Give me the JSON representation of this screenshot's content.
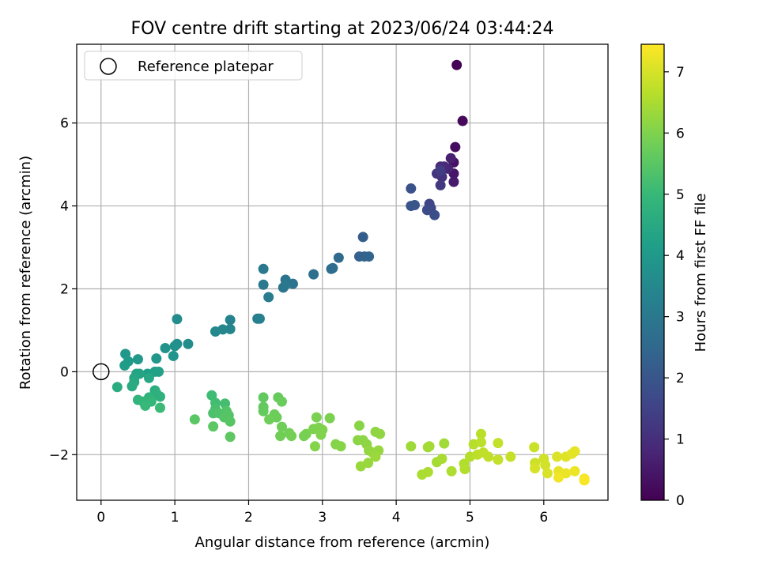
{
  "chart_data": {
    "type": "scatter",
    "title": "FOV centre drift starting at 2023/06/24 03:44:24",
    "xlabel": "Angular distance from reference (arcmin)",
    "ylabel": "Rotation from reference (arcmin)",
    "xlim": [
      -0.33,
      6.87
    ],
    "ylim": [
      -3.1,
      7.9
    ],
    "xticks": [
      0,
      1,
      2,
      3,
      4,
      5,
      6
    ],
    "yticks": [
      -2,
      0,
      2,
      4,
      6
    ],
    "grid": true,
    "legend": {
      "placement": "top-left",
      "entries": [
        {
          "label": "Reference platepar",
          "marker": "open-circle"
        }
      ]
    },
    "reference_point": {
      "x": 0,
      "y": 0
    },
    "colorbar": {
      "label": "Hours from first FF file",
      "range": [
        0,
        7.45
      ],
      "ticks": [
        0,
        1,
        2,
        3,
        4,
        5,
        6,
        7
      ],
      "colormap": "viridis",
      "stops": [
        "#440154",
        "#482878",
        "#3e4989",
        "#31688e",
        "#26828e",
        "#1f9e89",
        "#35b779",
        "#6ece58",
        "#b5de2b",
        "#fde725"
      ]
    },
    "points": [
      {
        "x": 4.82,
        "y": 7.4,
        "h": 0.05
      },
      {
        "x": 4.9,
        "y": 6.05,
        "h": 0.15
      },
      {
        "x": 4.8,
        "y": 5.42,
        "h": 0.25
      },
      {
        "x": 4.78,
        "y": 5.05,
        "h": 0.35
      },
      {
        "x": 4.78,
        "y": 4.78,
        "h": 0.45
      },
      {
        "x": 4.78,
        "y": 4.58,
        "h": 0.55
      },
      {
        "x": 4.74,
        "y": 5.15,
        "h": 0.65
      },
      {
        "x": 4.7,
        "y": 4.9,
        "h": 0.75
      },
      {
        "x": 4.65,
        "y": 4.95,
        "h": 0.85
      },
      {
        "x": 4.6,
        "y": 4.95,
        "h": 0.95
      },
      {
        "x": 4.62,
        "y": 4.7,
        "h": 1.05
      },
      {
        "x": 4.55,
        "y": 4.78,
        "h": 1.15
      },
      {
        "x": 4.6,
        "y": 4.5,
        "h": 1.25
      },
      {
        "x": 4.6,
        "y": 4.85,
        "h": 1.35
      },
      {
        "x": 4.45,
        "y": 4.05,
        "h": 1.5
      },
      {
        "x": 4.47,
        "y": 3.95,
        "h": 1.6
      },
      {
        "x": 4.42,
        "y": 3.9,
        "h": 1.7
      },
      {
        "x": 4.52,
        "y": 3.78,
        "h": 1.8
      },
      {
        "x": 4.2,
        "y": 4.42,
        "h": 1.9
      },
      {
        "x": 4.2,
        "y": 4.0,
        "h": 1.95
      },
      {
        "x": 4.25,
        "y": 4.02,
        "h": 2.0
      },
      {
        "x": 3.55,
        "y": 3.25,
        "h": 2.2
      },
      {
        "x": 3.5,
        "y": 2.78,
        "h": 2.3
      },
      {
        "x": 3.57,
        "y": 2.78,
        "h": 2.35
      },
      {
        "x": 3.63,
        "y": 2.78,
        "h": 2.4
      },
      {
        "x": 3.22,
        "y": 2.75,
        "h": 2.55
      },
      {
        "x": 3.12,
        "y": 2.48,
        "h": 2.6
      },
      {
        "x": 3.14,
        "y": 2.5,
        "h": 2.65
      },
      {
        "x": 2.88,
        "y": 2.35,
        "h": 2.7
      },
      {
        "x": 2.6,
        "y": 2.12,
        "h": 2.8
      },
      {
        "x": 2.5,
        "y": 2.22,
        "h": 2.85
      },
      {
        "x": 2.47,
        "y": 2.03,
        "h": 2.9
      },
      {
        "x": 2.5,
        "y": 2.1,
        "h": 2.95
      },
      {
        "x": 2.2,
        "y": 2.48,
        "h": 3.0
      },
      {
        "x": 2.2,
        "y": 2.1,
        "h": 3.05
      },
      {
        "x": 2.27,
        "y": 1.8,
        "h": 3.1
      },
      {
        "x": 2.12,
        "y": 1.28,
        "h": 3.2
      },
      {
        "x": 2.15,
        "y": 1.28,
        "h": 3.25
      },
      {
        "x": 1.75,
        "y": 1.25,
        "h": 3.35
      },
      {
        "x": 1.75,
        "y": 1.03,
        "h": 3.4
      },
      {
        "x": 1.65,
        "y": 1.02,
        "h": 3.45
      },
      {
        "x": 1.55,
        "y": 0.97,
        "h": 3.5
      },
      {
        "x": 1.03,
        "y": 1.27,
        "h": 3.6
      },
      {
        "x": 1.18,
        "y": 0.67,
        "h": 3.65
      },
      {
        "x": 1.03,
        "y": 0.67,
        "h": 3.7
      },
      {
        "x": 1.0,
        "y": 0.62,
        "h": 3.75
      },
      {
        "x": 0.87,
        "y": 0.57,
        "h": 3.8
      },
      {
        "x": 0.98,
        "y": 0.38,
        "h": 3.85
      },
      {
        "x": 0.75,
        "y": 0.32,
        "h": 3.9
      },
      {
        "x": 0.33,
        "y": 0.43,
        "h": 3.95
      },
      {
        "x": 0.5,
        "y": 0.3,
        "h": 4.0
      },
      {
        "x": 0.37,
        "y": 0.25,
        "h": 4.05
      },
      {
        "x": 0.32,
        "y": 0.15,
        "h": 4.1
      },
      {
        "x": 0.63,
        "y": -0.05,
        "h": 4.15
      },
      {
        "x": 0.73,
        "y": 0.0,
        "h": 4.2
      },
      {
        "x": 0.78,
        "y": 0.0,
        "h": 4.25
      },
      {
        "x": 0.48,
        "y": -0.05,
        "h": 4.3
      },
      {
        "x": 0.52,
        "y": -0.05,
        "h": 4.35
      },
      {
        "x": 0.45,
        "y": -0.15,
        "h": 4.4
      },
      {
        "x": 0.65,
        "y": -0.15,
        "h": 4.45
      },
      {
        "x": 0.45,
        "y": -0.25,
        "h": 4.5
      },
      {
        "x": 0.42,
        "y": -0.35,
        "h": 4.55
      },
      {
        "x": 0.22,
        "y": -0.37,
        "h": 4.6
      },
      {
        "x": 0.73,
        "y": -0.45,
        "h": 4.65
      },
      {
        "x": 0.75,
        "y": -0.52,
        "h": 4.7
      },
      {
        "x": 0.8,
        "y": -0.6,
        "h": 4.75
      },
      {
        "x": 0.65,
        "y": -0.62,
        "h": 4.8
      },
      {
        "x": 0.5,
        "y": -0.68,
        "h": 4.85
      },
      {
        "x": 0.57,
        "y": -0.72,
        "h": 4.9
      },
      {
        "x": 0.68,
        "y": -0.72,
        "h": 4.95
      },
      {
        "x": 0.6,
        "y": -0.82,
        "h": 5.0
      },
      {
        "x": 0.8,
        "y": -0.87,
        "h": 5.05
      },
      {
        "x": 1.5,
        "y": -0.57,
        "h": 5.1
      },
      {
        "x": 1.55,
        "y": -0.75,
        "h": 5.15
      },
      {
        "x": 1.68,
        "y": -0.77,
        "h": 5.2
      },
      {
        "x": 1.55,
        "y": -0.9,
        "h": 5.25
      },
      {
        "x": 1.52,
        "y": -1.0,
        "h": 5.3
      },
      {
        "x": 1.6,
        "y": -1.0,
        "h": 5.35
      },
      {
        "x": 1.7,
        "y": -0.95,
        "h": 5.4
      },
      {
        "x": 1.73,
        "y": -1.05,
        "h": 5.42
      },
      {
        "x": 1.67,
        "y": -1.1,
        "h": 5.45
      },
      {
        "x": 1.75,
        "y": -1.2,
        "h": 5.48
      },
      {
        "x": 1.27,
        "y": -1.15,
        "h": 5.5
      },
      {
        "x": 1.52,
        "y": -1.32,
        "h": 5.53
      },
      {
        "x": 1.75,
        "y": -1.57,
        "h": 5.56
      },
      {
        "x": 2.2,
        "y": -0.62,
        "h": 5.6
      },
      {
        "x": 2.2,
        "y": -0.85,
        "h": 5.63
      },
      {
        "x": 2.2,
        "y": -0.95,
        "h": 5.66
      },
      {
        "x": 2.4,
        "y": -0.62,
        "h": 5.7
      },
      {
        "x": 2.45,
        "y": -0.72,
        "h": 5.72
      },
      {
        "x": 2.35,
        "y": -1.03,
        "h": 5.74
      },
      {
        "x": 2.38,
        "y": -1.1,
        "h": 5.76
      },
      {
        "x": 2.28,
        "y": -1.15,
        "h": 5.78
      },
      {
        "x": 2.45,
        "y": -1.33,
        "h": 5.8
      },
      {
        "x": 2.43,
        "y": -1.55,
        "h": 5.82
      },
      {
        "x": 2.55,
        "y": -1.48,
        "h": 5.84
      },
      {
        "x": 2.58,
        "y": -1.55,
        "h": 5.86
      },
      {
        "x": 2.75,
        "y": -1.55,
        "h": 5.88
      },
      {
        "x": 2.78,
        "y": -1.5,
        "h": 5.9
      },
      {
        "x": 2.92,
        "y": -1.1,
        "h": 5.92
      },
      {
        "x": 3.1,
        "y": -1.12,
        "h": 5.94
      },
      {
        "x": 2.88,
        "y": -1.38,
        "h": 5.96
      },
      {
        "x": 2.95,
        "y": -1.35,
        "h": 5.98
      },
      {
        "x": 3.0,
        "y": -1.4,
        "h": 6.0
      },
      {
        "x": 2.98,
        "y": -1.52,
        "h": 6.02
      },
      {
        "x": 2.9,
        "y": -1.8,
        "h": 6.04
      },
      {
        "x": 3.18,
        "y": -1.75,
        "h": 6.06
      },
      {
        "x": 3.25,
        "y": -1.8,
        "h": 6.08
      },
      {
        "x": 3.5,
        "y": -1.3,
        "h": 6.1
      },
      {
        "x": 3.48,
        "y": -1.65,
        "h": 6.12
      },
      {
        "x": 3.55,
        "y": -1.65,
        "h": 6.14
      },
      {
        "x": 3.6,
        "y": -1.75,
        "h": 6.16
      },
      {
        "x": 3.72,
        "y": -1.45,
        "h": 6.18
      },
      {
        "x": 3.78,
        "y": -1.5,
        "h": 6.2
      },
      {
        "x": 3.63,
        "y": -1.9,
        "h": 6.22
      },
      {
        "x": 3.68,
        "y": -1.95,
        "h": 6.24
      },
      {
        "x": 3.76,
        "y": -1.9,
        "h": 6.26
      },
      {
        "x": 3.62,
        "y": -2.2,
        "h": 6.28
      },
      {
        "x": 3.52,
        "y": -2.28,
        "h": 6.3
      },
      {
        "x": 3.72,
        "y": -2.05,
        "h": 6.32
      },
      {
        "x": 4.2,
        "y": -1.8,
        "h": 6.35
      },
      {
        "x": 4.43,
        "y": -1.82,
        "h": 6.38
      },
      {
        "x": 4.65,
        "y": -1.73,
        "h": 6.4
      },
      {
        "x": 4.45,
        "y": -1.8,
        "h": 6.42
      },
      {
        "x": 4.55,
        "y": -2.18,
        "h": 6.45
      },
      {
        "x": 4.62,
        "y": -2.1,
        "h": 6.47
      },
      {
        "x": 4.35,
        "y": -2.48,
        "h": 6.5
      },
      {
        "x": 4.43,
        "y": -2.42,
        "h": 6.52
      },
      {
        "x": 4.75,
        "y": -2.4,
        "h": 6.55
      },
      {
        "x": 4.92,
        "y": -2.22,
        "h": 6.57
      },
      {
        "x": 4.93,
        "y": -2.35,
        "h": 6.6
      },
      {
        "x": 5.0,
        "y": -2.05,
        "h": 6.62
      },
      {
        "x": 5.05,
        "y": -1.75,
        "h": 6.65
      },
      {
        "x": 5.15,
        "y": -1.5,
        "h": 6.67
      },
      {
        "x": 5.15,
        "y": -1.7,
        "h": 6.7
      },
      {
        "x": 5.1,
        "y": -2.0,
        "h": 6.72
      },
      {
        "x": 5.18,
        "y": -1.95,
        "h": 6.74
      },
      {
        "x": 5.25,
        "y": -2.05,
        "h": 6.76
      },
      {
        "x": 5.38,
        "y": -1.72,
        "h": 6.78
      },
      {
        "x": 5.38,
        "y": -2.12,
        "h": 6.8
      },
      {
        "x": 5.55,
        "y": -2.05,
        "h": 6.82
      },
      {
        "x": 5.87,
        "y": -1.82,
        "h": 6.86
      },
      {
        "x": 5.88,
        "y": -2.2,
        "h": 6.9
      },
      {
        "x": 6.0,
        "y": -2.1,
        "h": 6.93
      },
      {
        "x": 6.02,
        "y": -2.25,
        "h": 6.96
      },
      {
        "x": 5.88,
        "y": -2.33,
        "h": 7.0
      },
      {
        "x": 6.05,
        "y": -2.45,
        "h": 7.03
      },
      {
        "x": 6.18,
        "y": -2.05,
        "h": 7.06
      },
      {
        "x": 6.3,
        "y": -2.05,
        "h": 7.1
      },
      {
        "x": 6.38,
        "y": -1.98,
        "h": 7.13
      },
      {
        "x": 6.42,
        "y": -1.92,
        "h": 7.16
      },
      {
        "x": 6.2,
        "y": -2.4,
        "h": 7.2
      },
      {
        "x": 6.3,
        "y": -2.45,
        "h": 7.23
      },
      {
        "x": 6.42,
        "y": -2.4,
        "h": 7.26
      },
      {
        "x": 6.2,
        "y": -2.55,
        "h": 7.3
      },
      {
        "x": 6.55,
        "y": -2.58,
        "h": 7.35
      },
      {
        "x": 6.55,
        "y": -2.62,
        "h": 7.4
      }
    ]
  }
}
